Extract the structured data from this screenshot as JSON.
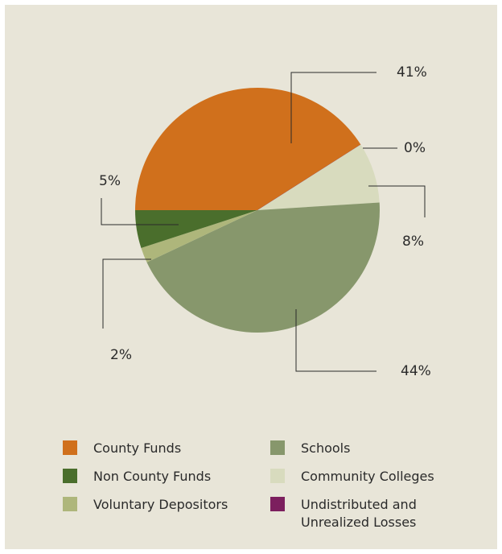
{
  "chart_data": {
    "type": "pie",
    "slices": [
      {
        "name": "County Funds",
        "value": 41,
        "label": "41%",
        "color": "#d0701c"
      },
      {
        "name": "Undistributed and\nUnrealized Losses",
        "value": 0,
        "label": "0%",
        "color": "#7c1f5e"
      },
      {
        "name": "Community Colleges",
        "value": 8,
        "label": "8%",
        "color": "#d8dbbe"
      },
      {
        "name": "Schools",
        "value": 44,
        "label": "44%",
        "color": "#87976c"
      },
      {
        "name": "Voluntary Depositors",
        "value": 2,
        "label": "2%",
        "color": "#aeb67b"
      },
      {
        "name": "Non County Funds",
        "value": 5,
        "label": "5%",
        "color": "#4a6e2c"
      }
    ],
    "legend": {
      "placement": "bottom",
      "columns": [
        [
          "County Funds",
          "Non County Funds",
          "Voluntary Depositors"
        ],
        [
          "Schools",
          "Community Colleges",
          "Undistributed and\nUnrealized Losses"
        ]
      ]
    }
  }
}
